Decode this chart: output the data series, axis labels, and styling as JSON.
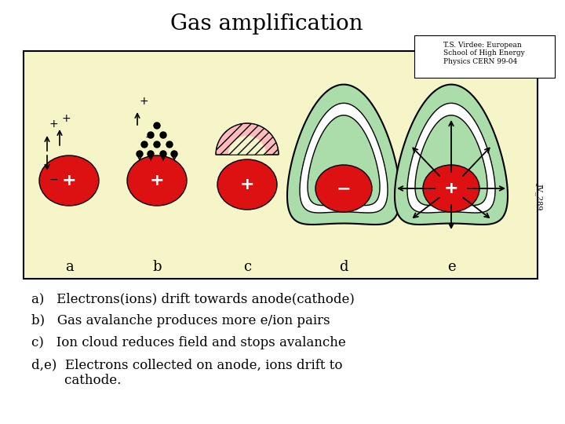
{
  "title": "Gas amplification",
  "subtitle_box": "T.S. Virdee: European\nSchool of High Energy\nPhysics CERN 99-04",
  "bg_color": "#f5f5c8",
  "panel_labels": [
    "a",
    "b",
    "c",
    "d",
    "e"
  ],
  "text_lines": [
    "a)   Electrons(ions) drift towards anode(cathode)",
    "b)   Gas avalanche produces more e/ion pairs",
    "c)   Ion cloud reduces field and stops avalanche",
    "d,e)  Electrons collected on anode, ions drift to\n        cathode."
  ],
  "red_color": "#dd1111",
  "green_color": "#aaddaa",
  "white_color": "#ffffff",
  "pink_color": "#ffaaaa",
  "arrow_color": "#111111"
}
